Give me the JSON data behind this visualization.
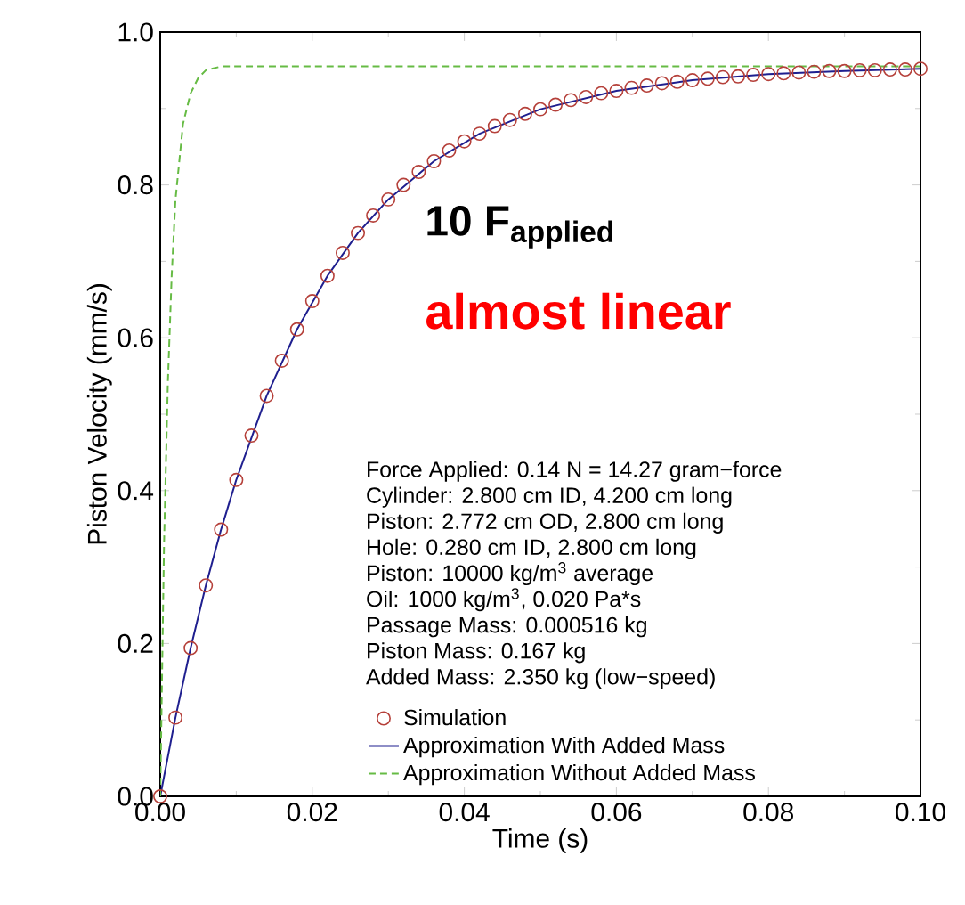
{
  "chart_data": {
    "type": "line",
    "xlabel": "Time (s)",
    "ylabel": "Piston Velocity (mm/s)",
    "xlim": [
      0,
      0.1
    ],
    "ylim": [
      0,
      1
    ],
    "xticks": [
      {
        "value": 0,
        "label": "0.00"
      },
      0.02,
      0.04,
      0.06,
      0.08,
      {
        "value": 0.1,
        "label": "0.10"
      }
    ],
    "yticks": [
      {
        "value": 0,
        "label": "0.0"
      },
      0.2,
      0.4,
      0.6,
      0.8,
      {
        "value": 1,
        "label": "1.0"
      }
    ],
    "grid": false,
    "legend": "bottom right",
    "annotations": [
      "10 F$_{applied}$",
      "almost linear",
      "Force Applied: 0.14 N = 14.27 gram−force",
      "Cylinder: 2.800 cm ID, 4.200 cm long",
      "Piston: 2.772 cm OD, 2.800 cm long",
      "Hole: 0.280 cm ID, 2.800 cm long",
      "Piston: 10000 kg/m$^{3}$ average",
      "Oil: 1000 kg/m$^{3}$, 0.020 Pa*s",
      "Passage Mass: 0.000516 kg",
      "Piston Mass: 0.167 kg",
      "Added Mass: 2.350 kg (low−speed)"
    ],
    "series": [
      {
        "name": "Simulation",
        "type": "scatter",
        "marker": "circle",
        "color": "#b5403a",
        "x": [
          0,
          0.002,
          0.004,
          0.006,
          0.008,
          0.01,
          0.012,
          0.014,
          0.016,
          0.018,
          0.02,
          0.022,
          0.024,
          0.026,
          0.028,
          0.03,
          0.032,
          0.034,
          0.036,
          0.038,
          0.04,
          0.042,
          0.044,
          0.046,
          0.048,
          0.05,
          0.052,
          0.054,
          0.056,
          0.058,
          0.06,
          0.062,
          0.064,
          0.066,
          0.068,
          0.07,
          0.072,
          0.074,
          0.076,
          0.078,
          0.08,
          0.082,
          0.084,
          0.086,
          0.088,
          0.09,
          0.092,
          0.094,
          0.096,
          0.098,
          0.1
        ],
        "values": [
          0,
          0.103,
          0.194,
          0.276,
          0.349,
          0.414,
          0.472,
          0.524,
          0.57,
          0.611,
          0.648,
          0.681,
          0.711,
          0.737,
          0.76,
          0.781,
          0.8,
          0.817,
          0.831,
          0.845,
          0.857,
          0.867,
          0.877,
          0.885,
          0.893,
          0.899,
          0.905,
          0.911,
          0.915,
          0.92,
          0.923,
          0.927,
          0.93,
          0.933,
          0.935,
          0.937,
          0.939,
          0.941,
          0.942,
          0.944,
          0.945,
          0.946,
          0.947,
          0.948,
          0.949,
          0.949,
          0.95,
          0.95,
          0.951,
          0.951,
          0.952
        ]
      },
      {
        "name": "Approximation With Added Mass",
        "type": "line",
        "line_style": "solid",
        "color": "#1f1f8f",
        "x": [
          0,
          0.002,
          0.004,
          0.006,
          0.008,
          0.01,
          0.014,
          0.018,
          0.022,
          0.026,
          0.03,
          0.036,
          0.042,
          0.05,
          0.06,
          0.07,
          0.08,
          0.09,
          0.1
        ],
        "values": [
          0,
          0.103,
          0.194,
          0.276,
          0.349,
          0.414,
          0.524,
          0.611,
          0.681,
          0.737,
          0.781,
          0.831,
          0.867,
          0.899,
          0.923,
          0.937,
          0.945,
          0.949,
          0.952
        ]
      },
      {
        "name": "Approximation Without Added Mass",
        "type": "line",
        "line_style": "dashed",
        "color": "#66bb44",
        "x": [
          0,
          0.0005,
          0.001,
          0.0015,
          0.002,
          0.003,
          0.004,
          0.005,
          0.006,
          0.008,
          0.1
        ],
        "values": [
          0,
          0.33,
          0.54,
          0.68,
          0.78,
          0.88,
          0.92,
          0.94,
          0.95,
          0.955,
          0.955
        ]
      }
    ]
  }
}
